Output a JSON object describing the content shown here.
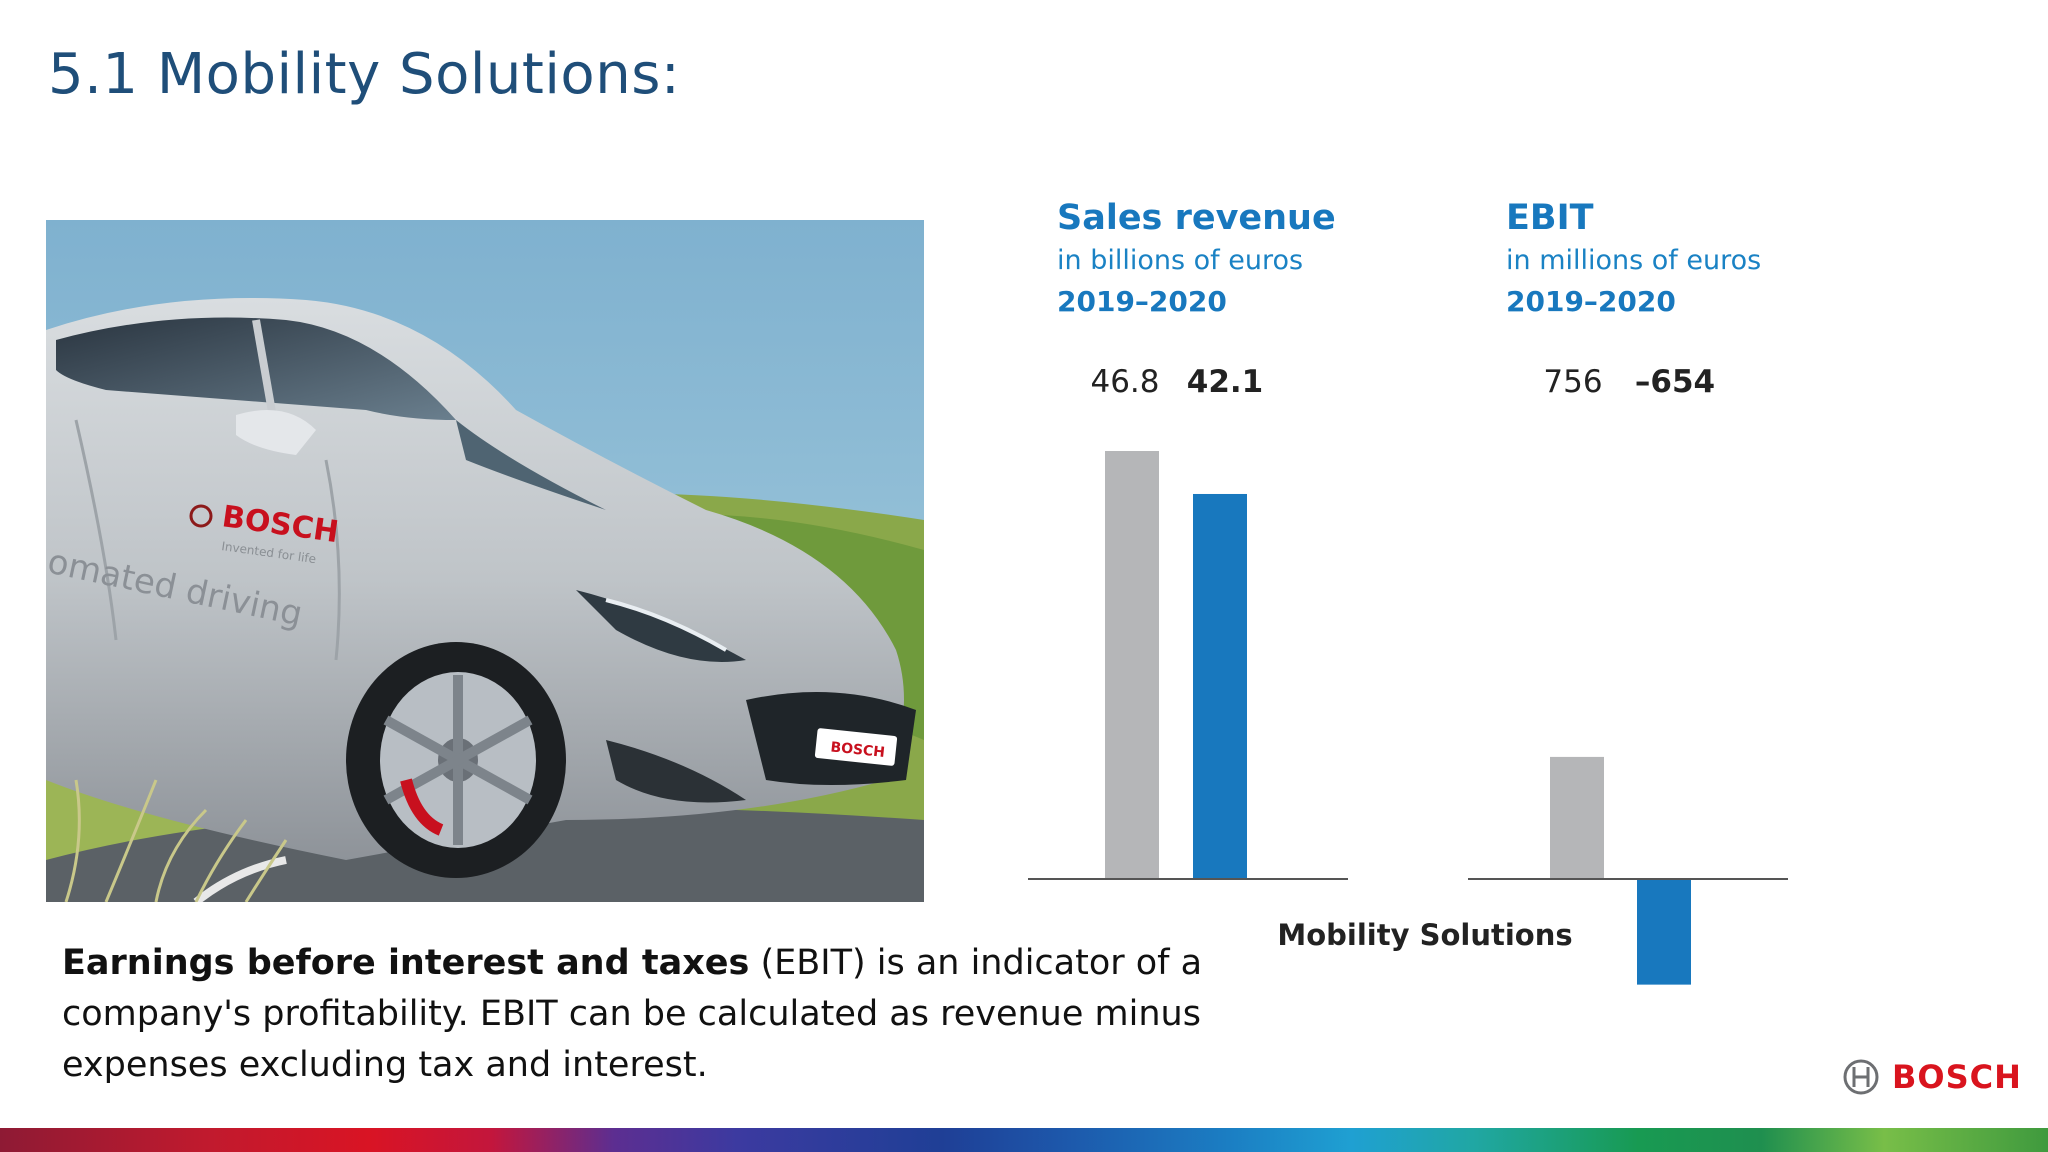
{
  "slide": {
    "title": "5.1 Mobility Solutions:"
  },
  "photo": {
    "door_brand": "BOSCH",
    "door_tagline": "Invented for life",
    "door_text": "omated driving",
    "plate_text": "BOSCH"
  },
  "chart_data": [
    {
      "type": "bar",
      "title": "Sales revenue",
      "subtitle": "in billions of euros",
      "period": "2019–2020",
      "categories": [
        "2019",
        "2020"
      ],
      "values": [
        46.8,
        42.1
      ],
      "value_labels": [
        "46.8",
        "42.1"
      ],
      "colors": [
        "#b5b6b8",
        "#1878be"
      ],
      "ylim": [
        0,
        46.8
      ]
    },
    {
      "type": "bar",
      "title": "EBIT",
      "subtitle": "in millions of euros",
      "period": "2019–2020",
      "categories": [
        "2019",
        "2020"
      ],
      "values": [
        756,
        -654
      ],
      "value_labels": [
        "756",
        "–654"
      ],
      "colors": [
        "#b5b6b8",
        "#1878be"
      ],
      "ylim": [
        -1100,
        2650
      ]
    }
  ],
  "charts_footer": "Mobility Solutions",
  "caption": {
    "bold": "Earnings before interest and taxes",
    "rest": " (EBIT) is an indicator of a company's profitability. EBIT can be calculated as revenue minus expenses excluding tax and interest."
  },
  "brand": {
    "name": "BOSCH"
  }
}
